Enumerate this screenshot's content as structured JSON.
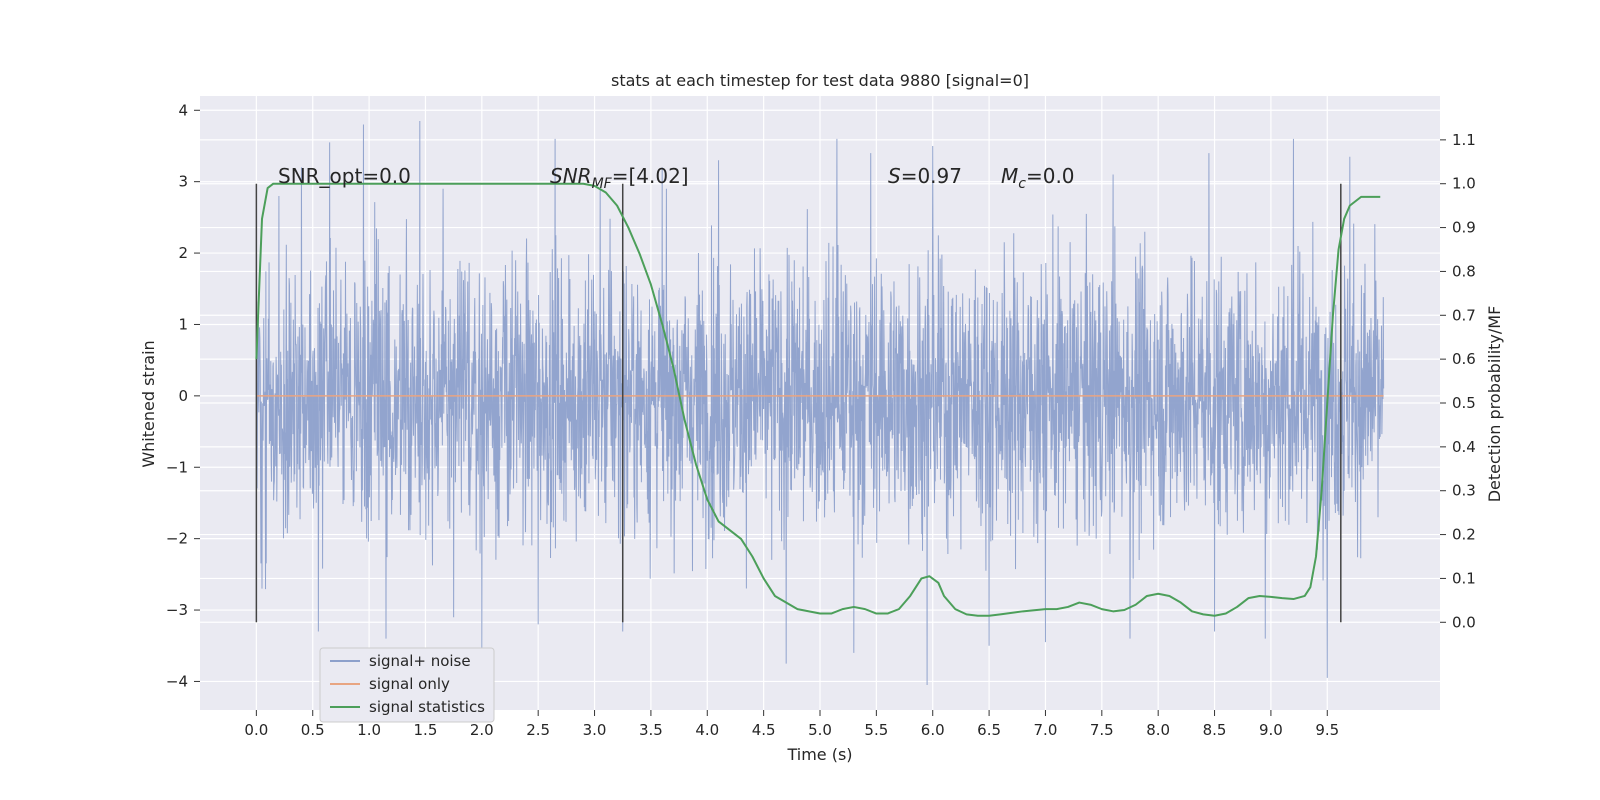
{
  "chart_data": {
    "type": "line",
    "title": "stats at each timestep for test data 9880 [signal=0]",
    "xlabel": "Time (s)",
    "ylabel": "Whitened strain",
    "ylabel_right": "Detection probability/MF",
    "xlim": [
      -0.5,
      10.5
    ],
    "ylim": [
      -4.4,
      4.2
    ],
    "ylim_right": [
      -0.2,
      1.2
    ],
    "x_ticks": [
      0.0,
      0.5,
      1.0,
      1.5,
      2.0,
      2.5,
      3.0,
      3.5,
      4.0,
      4.5,
      5.0,
      5.5,
      6.0,
      6.5,
      7.0,
      7.5,
      8.0,
      8.5,
      9.0,
      9.5
    ],
    "x_tick_labels": [
      "0.0",
      "0.5",
      "1.0",
      "1.5",
      "2.0",
      "2.5",
      "3.0",
      "3.5",
      "4.0",
      "4.5",
      "5.0",
      "5.5",
      "6.0",
      "6.5",
      "7.0",
      "7.5",
      "8.0",
      "8.5",
      "9.0",
      "9.5"
    ],
    "y_ticks": [
      -4,
      -3,
      -2,
      -1,
      0,
      1,
      2,
      3,
      4
    ],
    "y_tick_labels": [
      "−4",
      "−3",
      "−2",
      "−1",
      "0",
      "1",
      "2",
      "3",
      "4"
    ],
    "y_right_ticks": [
      0.0,
      0.1,
      0.2,
      0.3,
      0.4,
      0.5,
      0.6,
      0.7,
      0.8,
      0.9,
      1.0,
      1.1
    ],
    "y_right_tick_labels": [
      "0.0",
      "0.1",
      "0.2",
      "0.3",
      "0.4",
      "0.5",
      "0.6",
      "0.7",
      "0.8",
      "0.9",
      "1.0",
      "1.1"
    ],
    "grid": true,
    "legend_position": "lower-left",
    "annotations": {
      "snr_opt": "SNR_opt=0.0",
      "snr_mf_main": "SNR",
      "snr_mf_sub": "MF",
      "snr_mf_value": "=[4.02]",
      "s_main": "S",
      "s_value": "=0.97",
      "mc_main": "M",
      "mc_sub": "c",
      "mc_value": "=0.0"
    },
    "vertical_markers_x": [
      0.0,
      3.25,
      9.62
    ],
    "noise_series": {
      "name": "signal+ noise",
      "color": "#8da0cb",
      "x_range": [
        0.0,
        10.0
      ],
      "typical_range": [
        -2.2,
        2.2
      ],
      "peaks": [
        {
          "x": 0.2,
          "y": 2.8
        },
        {
          "x": 0.4,
          "y": 3.2
        },
        {
          "x": 0.65,
          "y": 3.55
        },
        {
          "x": 0.95,
          "y": 3.8
        },
        {
          "x": 1.45,
          "y": 3.85
        },
        {
          "x": 1.75,
          "y": 3.3
        },
        {
          "x": 2.65,
          "y": 3.6
        },
        {
          "x": 3.05,
          "y": 2.9
        },
        {
          "x": 3.6,
          "y": 3.2
        },
        {
          "x": 4.1,
          "y": 3.3
        },
        {
          "x": 5.15,
          "y": 3.6
        },
        {
          "x": 5.45,
          "y": 3.4
        },
        {
          "x": 6.0,
          "y": 3.5
        },
        {
          "x": 6.5,
          "y": 3.4
        },
        {
          "x": 7.0,
          "y": 3.2
        },
        {
          "x": 7.6,
          "y": 3.1
        },
        {
          "x": 8.45,
          "y": 3.4
        },
        {
          "x": 9.2,
          "y": 3.6
        },
        {
          "x": 9.7,
          "y": 3.35
        },
        {
          "x": 0.05,
          "y": -2.7
        },
        {
          "x": 0.55,
          "y": -3.3
        },
        {
          "x": 1.15,
          "y": -3.4
        },
        {
          "x": 1.75,
          "y": -3.1
        },
        {
          "x": 2.0,
          "y": -3.6
        },
        {
          "x": 2.5,
          "y": -3.2
        },
        {
          "x": 3.25,
          "y": -3.3
        },
        {
          "x": 4.7,
          "y": -3.75
        },
        {
          "x": 5.3,
          "y": -3.6
        },
        {
          "x": 5.95,
          "y": -4.05
        },
        {
          "x": 6.5,
          "y": -3.5
        },
        {
          "x": 7.0,
          "y": -3.45
        },
        {
          "x": 7.75,
          "y": -3.4
        },
        {
          "x": 8.5,
          "y": -3.3
        },
        {
          "x": 8.95,
          "y": -3.4
        },
        {
          "x": 9.5,
          "y": -3.95
        }
      ]
    },
    "signal_only": {
      "name": "signal only",
      "color": "#e8a582",
      "x": [
        0.0,
        10.0
      ],
      "y": [
        0.0,
        0.0
      ]
    },
    "statistics": {
      "name": "signal statistics",
      "color": "#4c9f5a",
      "x": [
        0.0,
        0.05,
        0.1,
        0.15,
        0.25,
        0.5,
        1.0,
        1.5,
        2.0,
        2.5,
        2.9,
        3.0,
        3.1,
        3.2,
        3.3,
        3.4,
        3.5,
        3.6,
        3.7,
        3.8,
        3.9,
        4.0,
        4.1,
        4.2,
        4.3,
        4.4,
        4.5,
        4.6,
        4.8,
        5.0,
        5.1,
        5.2,
        5.3,
        5.4,
        5.5,
        5.6,
        5.7,
        5.8,
        5.9,
        5.97,
        6.05,
        6.1,
        6.2,
        6.3,
        6.4,
        6.5,
        6.6,
        6.8,
        7.0,
        7.1,
        7.2,
        7.3,
        7.4,
        7.5,
        7.6,
        7.7,
        7.8,
        7.9,
        8.0,
        8.1,
        8.2,
        8.3,
        8.4,
        8.5,
        8.6,
        8.7,
        8.8,
        8.9,
        9.0,
        9.1,
        9.2,
        9.3,
        9.35,
        9.4,
        9.45,
        9.5,
        9.55,
        9.6,
        9.65,
        9.7,
        9.75,
        9.8,
        9.9,
        9.97
      ],
      "y": [
        0.6,
        0.92,
        0.99,
        1.0,
        1.0,
        1.0,
        1.0,
        1.0,
        1.0,
        1.0,
        1.0,
        0.995,
        0.98,
        0.95,
        0.9,
        0.84,
        0.77,
        0.68,
        0.58,
        0.46,
        0.36,
        0.28,
        0.23,
        0.21,
        0.19,
        0.15,
        0.1,
        0.06,
        0.03,
        0.02,
        0.02,
        0.03,
        0.035,
        0.03,
        0.02,
        0.02,
        0.03,
        0.06,
        0.1,
        0.105,
        0.09,
        0.06,
        0.03,
        0.018,
        0.015,
        0.015,
        0.018,
        0.025,
        0.03,
        0.03,
        0.035,
        0.045,
        0.04,
        0.03,
        0.025,
        0.028,
        0.04,
        0.06,
        0.065,
        0.06,
        0.045,
        0.025,
        0.018,
        0.015,
        0.02,
        0.035,
        0.055,
        0.06,
        0.058,
        0.055,
        0.053,
        0.06,
        0.08,
        0.15,
        0.3,
        0.5,
        0.7,
        0.85,
        0.92,
        0.95,
        0.96,
        0.97,
        0.97,
        0.97
      ]
    }
  }
}
